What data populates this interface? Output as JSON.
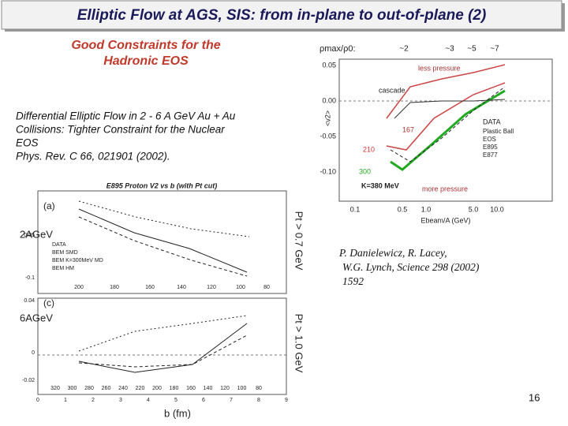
{
  "header": {
    "title": "Elliptic Flow at  AGS, SIS:  from in-plane to out-of-plane (2)"
  },
  "subtitle": [
    "Good Constraints for the",
    "Hadronic EOS"
  ],
  "description": [
    "Differential Elliptic Flow in 2 - 6 A GeV Au + Au",
    "Collisions: Tighter Constraint for the Nuclear",
    "EOS",
    "Phys. Rev. C 66, 021901 (2002)."
  ],
  "citation": [
    "P. Danielewicz, R. Lacey,",
    "W.G. Lynch, Science 298 (2002)",
    "1592"
  ],
  "page_number": "16",
  "right_plot": {
    "density_label": "ρmax/ρ0:",
    "density_values": [
      "~2",
      "~3",
      "~5",
      "~7"
    ],
    "y_label": "<v2>",
    "y_ticks": [
      "0.05",
      "0.00",
      "-0.05",
      "-0.10"
    ],
    "x_ticks": [
      "0.1",
      "0.5",
      "1.0",
      "5.0",
      "10.0"
    ],
    "x_label": "Ebeam/A (GeV)",
    "annotations": [
      "less pressure",
      "cascade",
      "167",
      "210",
      "300",
      "K=380 MeV",
      "more pressure"
    ],
    "legend": [
      "DATA",
      "Plastic Ball",
      "EOS",
      "E895",
      "E877"
    ]
  },
  "left_plot": {
    "title": "E895 Proton V2 vs b (with Pt cut)",
    "panel_a": [
      "(a)",
      "2AGeV",
      "Pt > 0.7 GeV"
    ],
    "panel_c": [
      "(c)",
      "6AGeV",
      "Pt > 1.0 GeV"
    ],
    "legend": [
      "DATA",
      "BEM SMD",
      "BEM K=300MeV MD",
      "BEM HM"
    ],
    "y_ticks_a": [
      "0.05",
      "-0.1"
    ],
    "y_ticks_c": [
      "0.04",
      "0",
      "-0.02"
    ],
    "top_ticks_a": [
      "200",
      "180",
      "160",
      "140",
      "120",
      "100",
      "80"
    ],
    "top_ticks_c": [
      "320",
      "300",
      "280",
      "260",
      "240",
      "220",
      "200",
      "180",
      "160",
      "140",
      "120",
      "100",
      "80"
    ],
    "x_ticks": [
      "0",
      "1",
      "2",
      "3",
      "4",
      "5",
      "6",
      "7",
      "8",
      "9"
    ],
    "x_label": "b (fm)"
  }
}
